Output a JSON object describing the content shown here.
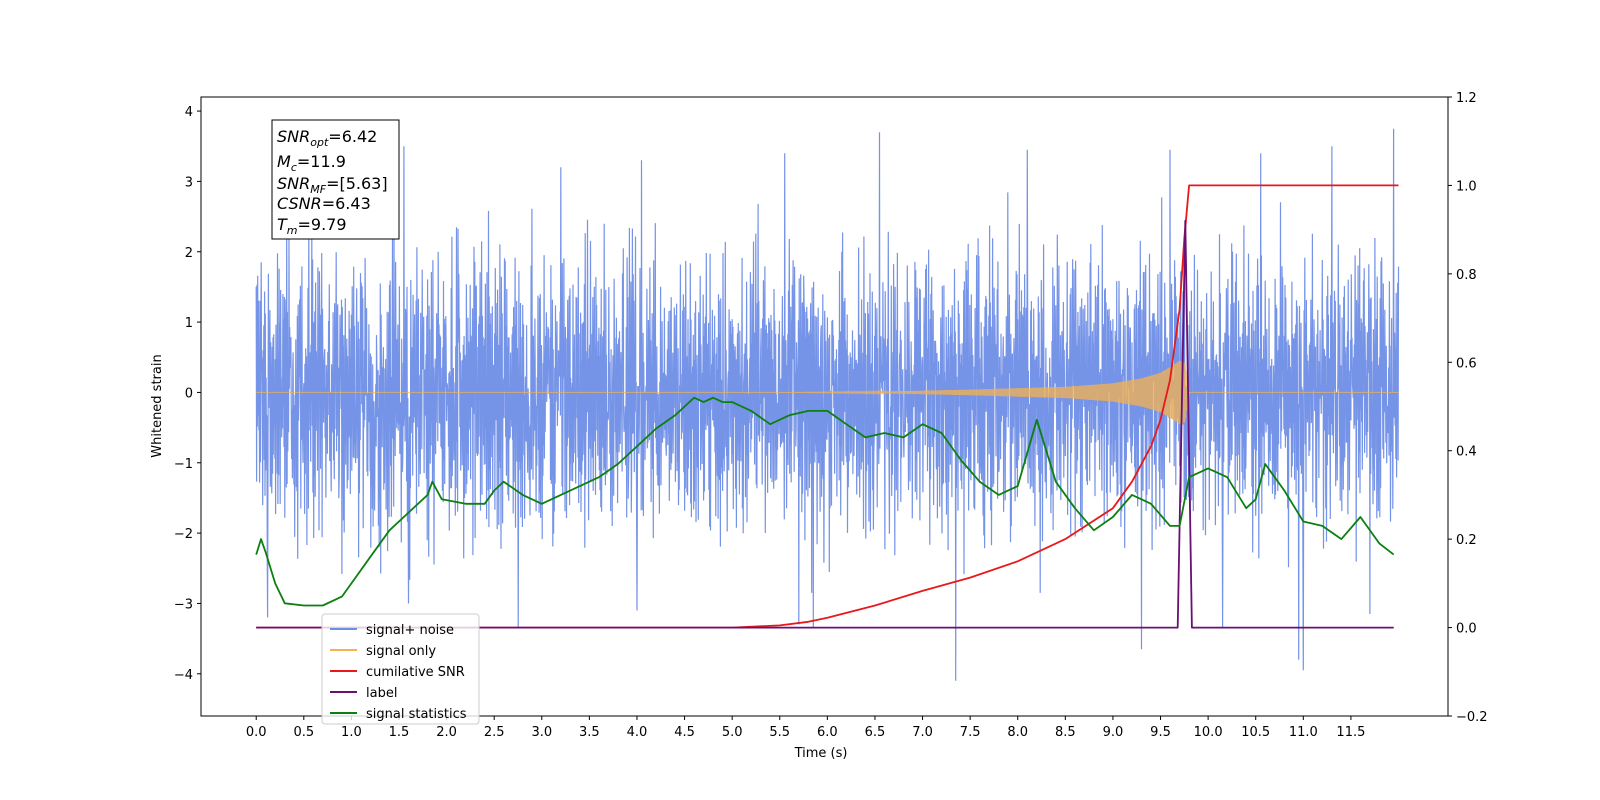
{
  "chart_data": {
    "type": "line",
    "title": "",
    "xlabel": "Time (s)",
    "ylabel": "Whitened strain",
    "xlim": [
      -0.58,
      12.52
    ],
    "ylim": [
      -4.6,
      4.2
    ],
    "y2lim": [
      -0.2,
      1.2
    ],
    "xticks": [
      0.0,
      0.5,
      1.0,
      1.5,
      2.0,
      2.5,
      3.0,
      3.5,
      4.0,
      4.5,
      5.0,
      5.5,
      6.0,
      6.5,
      7.0,
      7.5,
      8.0,
      8.5,
      9.0,
      9.5,
      10.0,
      10.5,
      11.0,
      11.5
    ],
    "yticks": [
      4,
      3,
      2,
      1,
      0,
      -1,
      -2,
      -3,
      -4
    ],
    "ytick_labels": [
      "4",
      "3",
      "2",
      "1",
      "0",
      "−1",
      "−2",
      "−3",
      "−4"
    ],
    "y2ticks": [
      1.2,
      1.0,
      0.8,
      0.6,
      0.4,
      0.2,
      0.0,
      -0.2
    ],
    "y2tick_labels": [
      "1.2",
      "1.0",
      "0.8",
      "0.6",
      "0.4",
      "0.2",
      "0.0",
      "−0.2"
    ],
    "grid": false,
    "legend_position": "lower-left",
    "info_box": {
      "snr_opt": "6.42",
      "mc": "11.9",
      "snr_mf": "[5.63]",
      "csnr": "6.43",
      "tm": "9.79"
    },
    "series": [
      {
        "name": "signal+ noise",
        "axis": "left",
        "color": "#6e8de6",
        "kind": "noise",
        "x_range": [
          0.0,
          12.0
        ],
        "envelope": 1.5,
        "peaks_high": [
          [
            0.05,
            1.85
          ],
          [
            0.55,
            2.5
          ],
          [
            1.55,
            3.5
          ],
          [
            2.75,
            3.8
          ],
          [
            3.2,
            3.2
          ],
          [
            4.05,
            3.3
          ],
          [
            5.55,
            3.4
          ],
          [
            6.55,
            3.7
          ],
          [
            7.35,
            3.45
          ],
          [
            8.1,
            3.45
          ],
          [
            9.6,
            3.45
          ],
          [
            10.55,
            3.4
          ],
          [
            11.3,
            3.5
          ],
          [
            11.95,
            3.75
          ]
        ],
        "peaks_low": [
          [
            0.12,
            -3.2
          ],
          [
            1.6,
            -3.0
          ],
          [
            2.75,
            -3.35
          ],
          [
            4.0,
            -3.1
          ],
          [
            5.7,
            -3.3
          ],
          [
            5.85,
            -3.35
          ],
          [
            7.35,
            -4.1
          ],
          [
            9.3,
            -3.65
          ],
          [
            10.15,
            -3.35
          ],
          [
            10.95,
            -3.8
          ],
          [
            11.0,
            -3.95
          ],
          [
            11.7,
            -3.15
          ]
        ]
      },
      {
        "name": "signal only",
        "axis": "left",
        "color": "#f5b24e",
        "kind": "chirp",
        "x_range": [
          0.0,
          12.0
        ],
        "amplitude_points": [
          [
            0.0,
            0.0
          ],
          [
            5.5,
            0.0
          ],
          [
            6.5,
            0.01
          ],
          [
            7.5,
            0.04
          ],
          [
            8.5,
            0.08
          ],
          [
            9.0,
            0.13
          ],
          [
            9.3,
            0.2
          ],
          [
            9.5,
            0.28
          ],
          [
            9.6,
            0.36
          ],
          [
            9.7,
            0.45
          ],
          [
            9.76,
            0.42
          ],
          [
            9.8,
            0.0
          ],
          [
            12.0,
            0.0
          ]
        ]
      },
      {
        "name": "cumilative SNR",
        "axis": "right",
        "color": "#e8181b",
        "x": [
          0.0,
          5.0,
          5.5,
          5.8,
          6.0,
          6.5,
          7.0,
          7.5,
          8.0,
          8.5,
          9.0,
          9.2,
          9.4,
          9.5,
          9.6,
          9.7,
          9.75,
          9.8,
          12.0
        ],
        "values": [
          0.0,
          0.0,
          0.005,
          0.013,
          0.022,
          0.05,
          0.083,
          0.113,
          0.15,
          0.2,
          0.27,
          0.33,
          0.41,
          0.47,
          0.56,
          0.72,
          0.88,
          1.0,
          1.0
        ]
      },
      {
        "name": "label",
        "axis": "right",
        "color": "#6a0f74",
        "x": [
          0.0,
          9.68,
          9.76,
          9.83,
          11.95
        ],
        "values": [
          0.0,
          0.0,
          0.92,
          0.0,
          0.0
        ]
      },
      {
        "name": "signal statistics",
        "axis": "right",
        "color": "#0d7f10",
        "x": [
          0.0,
          0.05,
          0.1,
          0.2,
          0.3,
          0.5,
          0.7,
          0.9,
          1.0,
          1.2,
          1.4,
          1.6,
          1.8,
          1.85,
          1.95,
          2.2,
          2.4,
          2.5,
          2.6,
          2.8,
          3.0,
          3.2,
          3.4,
          3.6,
          3.8,
          4.0,
          4.2,
          4.4,
          4.5,
          4.6,
          4.7,
          4.8,
          4.9,
          5.0,
          5.2,
          5.4,
          5.6,
          5.8,
          6.0,
          6.2,
          6.4,
          6.6,
          6.8,
          7.0,
          7.2,
          7.4,
          7.6,
          7.8,
          8.0,
          8.2,
          8.4,
          8.6,
          8.8,
          9.0,
          9.2,
          9.4,
          9.6,
          9.7,
          9.8,
          10.0,
          10.2,
          10.4,
          10.5,
          10.6,
          10.8,
          11.0,
          11.2,
          11.4,
          11.6,
          11.8,
          11.95
        ],
        "values": [
          0.165,
          0.2,
          0.17,
          0.1,
          0.055,
          0.05,
          0.05,
          0.07,
          0.1,
          0.16,
          0.22,
          0.26,
          0.3,
          0.33,
          0.29,
          0.28,
          0.28,
          0.31,
          0.33,
          0.3,
          0.28,
          0.3,
          0.32,
          0.34,
          0.37,
          0.41,
          0.45,
          0.48,
          0.5,
          0.52,
          0.51,
          0.52,
          0.51,
          0.51,
          0.49,
          0.46,
          0.48,
          0.49,
          0.49,
          0.46,
          0.43,
          0.44,
          0.43,
          0.46,
          0.44,
          0.38,
          0.33,
          0.3,
          0.32,
          0.47,
          0.33,
          0.27,
          0.22,
          0.25,
          0.3,
          0.28,
          0.23,
          0.23,
          0.34,
          0.36,
          0.34,
          0.27,
          0.29,
          0.37,
          0.31,
          0.24,
          0.23,
          0.2,
          0.25,
          0.19,
          0.165
        ]
      }
    ],
    "legend_entries": [
      {
        "label": "signal+ noise",
        "color": "#6e8de6"
      },
      {
        "label": "signal only",
        "color": "#f5b24e"
      },
      {
        "label": "cumilative SNR",
        "color": "#e8181b"
      },
      {
        "label": "label",
        "color": "#6a0f74"
      },
      {
        "label": "signal statistics",
        "color": "#0d7f10"
      }
    ]
  }
}
